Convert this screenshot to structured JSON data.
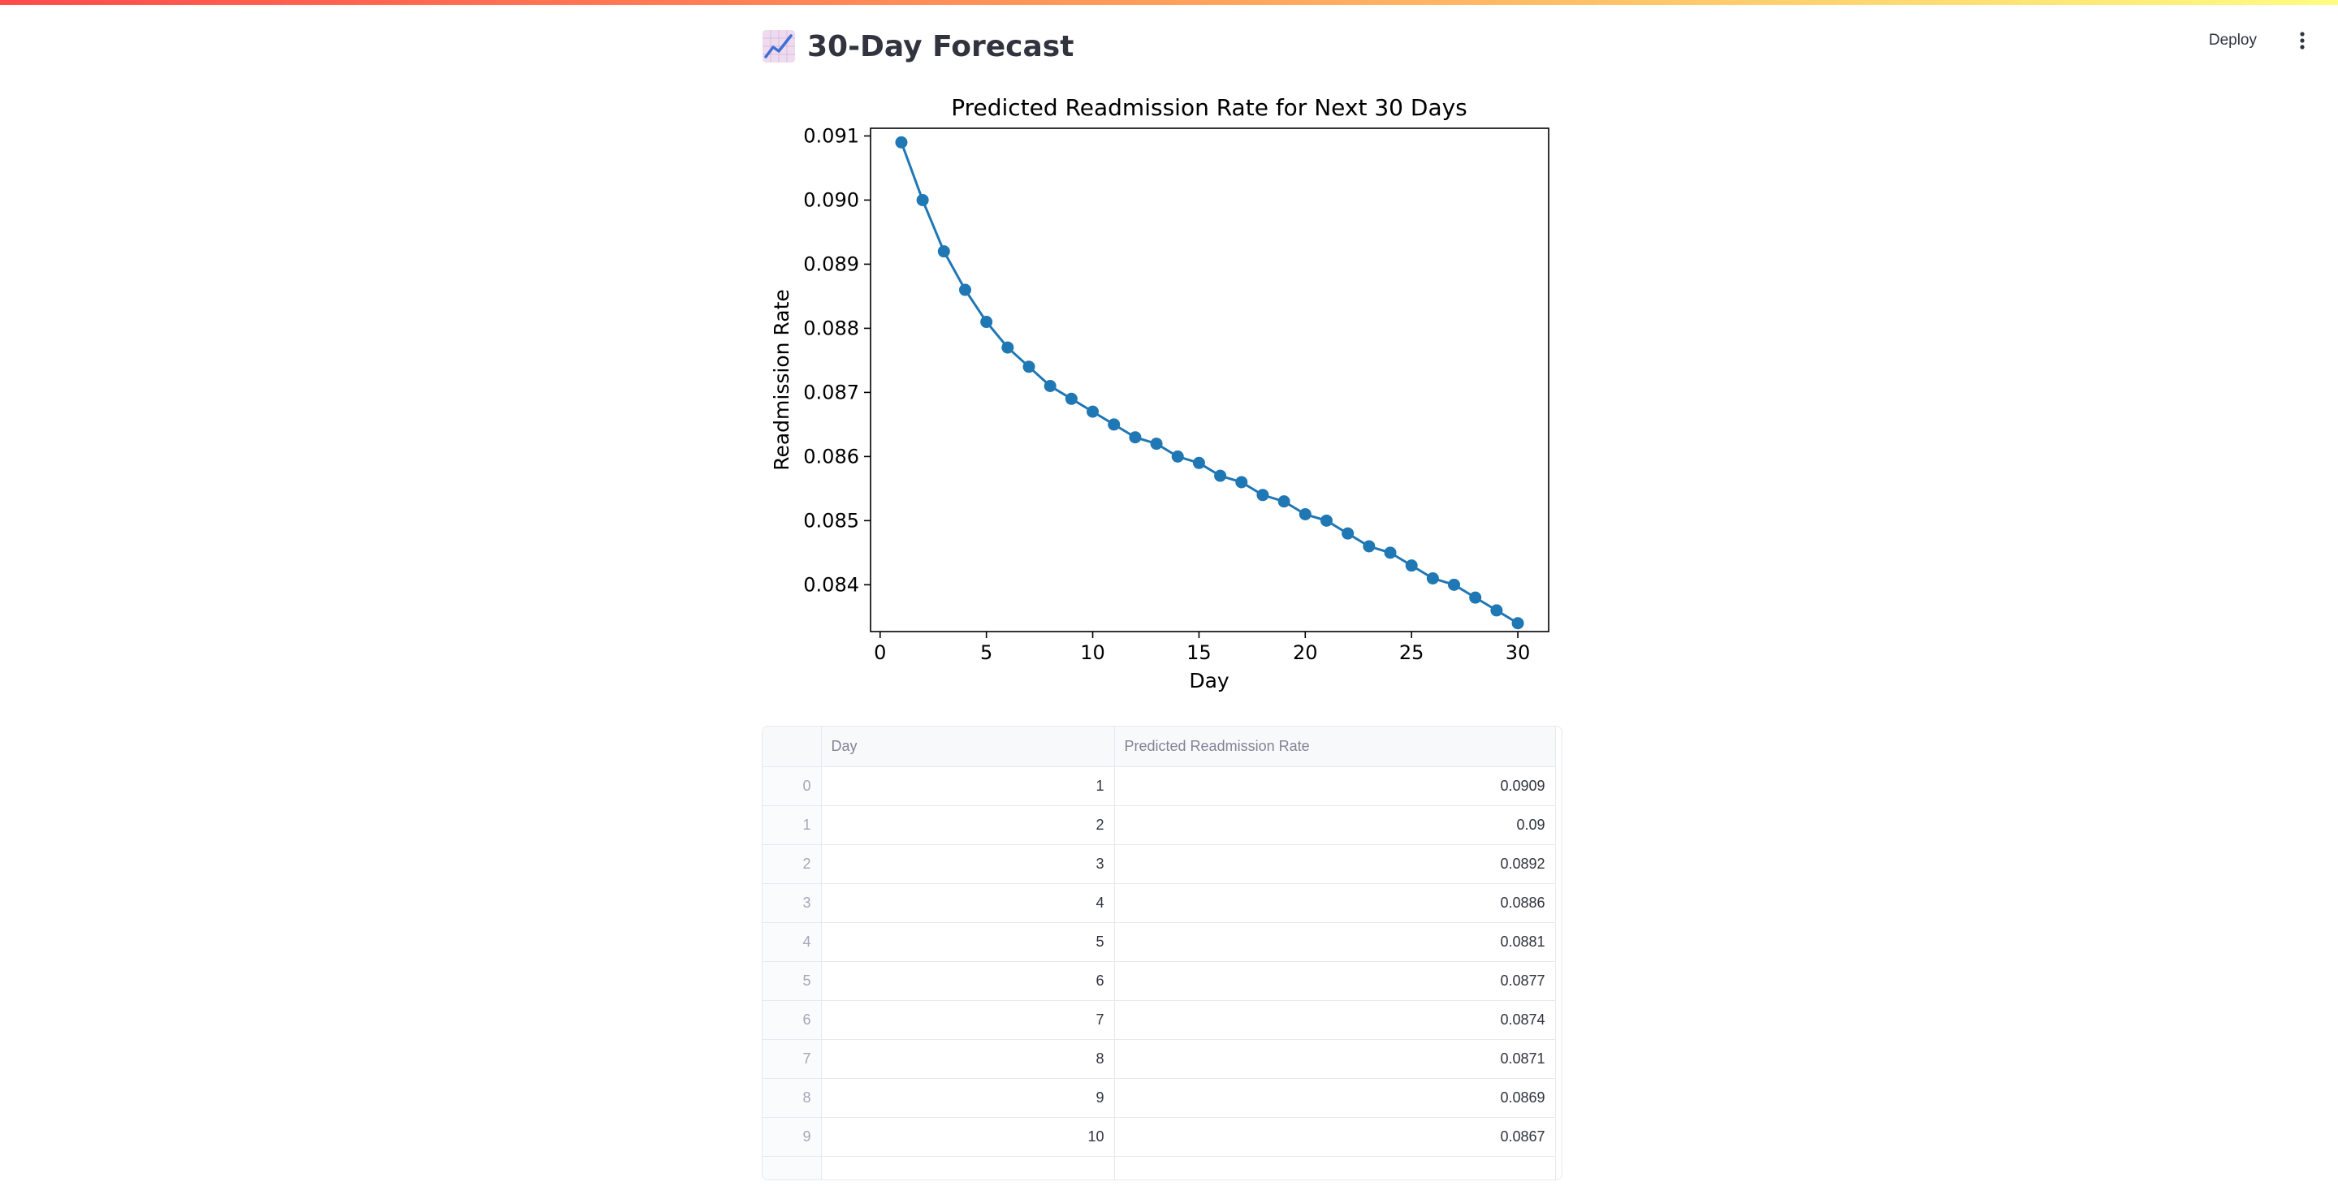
{
  "app": {
    "deploy_label": "Deploy",
    "menu_icon": "vertical-dots-icon"
  },
  "page": {
    "title": "30-Day Forecast",
    "title_icon": "chart-increasing-emoji-icon"
  },
  "chart_data": {
    "type": "line",
    "title": "Predicted Readmission Rate for Next 30 Days",
    "xlabel": "Day",
    "ylabel": "Readmission Rate",
    "xlim": [
      -0.45,
      31.45
    ],
    "ylim": [
      0.08327,
      0.09112
    ],
    "xticks": [
      0,
      5,
      10,
      15,
      20,
      25,
      30
    ],
    "yticks": [
      0.084,
      0.085,
      0.086,
      0.087,
      0.088,
      0.089,
      0.09,
      0.091
    ],
    "grid": false,
    "marker": "circle",
    "color": "#1f77b4",
    "x": [
      1,
      2,
      3,
      4,
      5,
      6,
      7,
      8,
      9,
      10,
      11,
      12,
      13,
      14,
      15,
      16,
      17,
      18,
      19,
      20,
      21,
      22,
      23,
      24,
      25,
      26,
      27,
      28,
      29,
      30
    ],
    "y": [
      0.0909,
      0.09,
      0.0892,
      0.0886,
      0.0881,
      0.0877,
      0.0874,
      0.0871,
      0.0869,
      0.0867,
      0.0865,
      0.0863,
      0.0862,
      0.086,
      0.0859,
      0.0857,
      0.0856,
      0.0854,
      0.0853,
      0.0851,
      0.085,
      0.0848,
      0.0846,
      0.0845,
      0.0843,
      0.0841,
      0.084,
      0.0838,
      0.0836,
      0.0834
    ]
  },
  "table": {
    "columns": [
      "",
      "Day",
      "Predicted Readmission Rate"
    ],
    "rows": [
      {
        "index": "0",
        "day": "1",
        "rate": "0.0909"
      },
      {
        "index": "1",
        "day": "2",
        "rate": "0.09"
      },
      {
        "index": "2",
        "day": "3",
        "rate": "0.0892"
      },
      {
        "index": "3",
        "day": "4",
        "rate": "0.0886"
      },
      {
        "index": "4",
        "day": "5",
        "rate": "0.0881"
      },
      {
        "index": "5",
        "day": "6",
        "rate": "0.0877"
      },
      {
        "index": "6",
        "day": "7",
        "rate": "0.0874"
      },
      {
        "index": "7",
        "day": "8",
        "rate": "0.0871"
      },
      {
        "index": "8",
        "day": "9",
        "rate": "0.0869"
      },
      {
        "index": "9",
        "day": "10",
        "rate": "0.0867"
      }
    ]
  }
}
